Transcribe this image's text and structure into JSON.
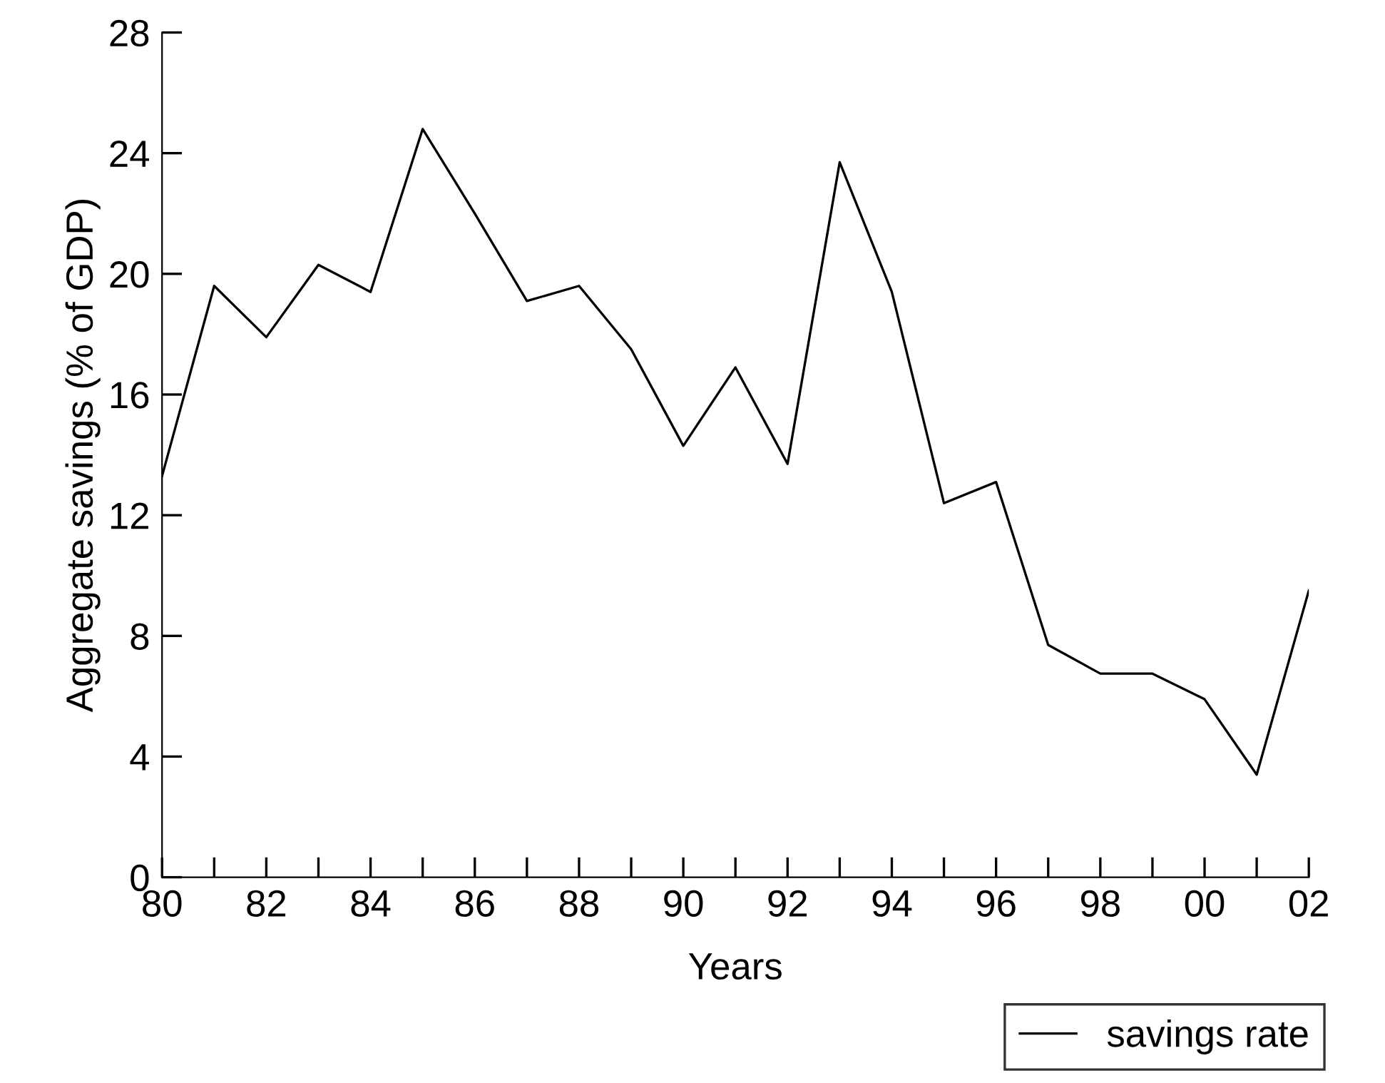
{
  "chart_data": {
    "type": "line",
    "xlabel": "Years",
    "ylabel": "Aggregate savings (% of GDP)",
    "x": [
      1980,
      1981,
      1982,
      1983,
      1984,
      1985,
      1986,
      1987,
      1988,
      1989,
      1990,
      1991,
      1992,
      1993,
      1994,
      1995,
      1996,
      1997,
      1998,
      1999,
      2000,
      2001,
      2002
    ],
    "series": [
      {
        "name": "savings rate",
        "color": "#000000",
        "values": [
          13.3,
          19.6,
          17.9,
          20.3,
          19.4,
          24.8,
          22.0,
          19.1,
          19.6,
          17.5,
          14.3,
          16.9,
          13.7,
          23.7,
          19.4,
          12.4,
          13.1,
          7.7,
          6.75,
          6.75,
          5.9,
          3.4,
          9.5
        ]
      }
    ],
    "xlim": [
      1980,
      2002
    ],
    "xticks": [
      {
        "value": 1980,
        "label": "80"
      },
      {
        "value": 1981,
        "label": null
      },
      {
        "value": 1982,
        "label": "82"
      },
      {
        "value": 1983,
        "label": null
      },
      {
        "value": 1984,
        "label": "84"
      },
      {
        "value": 1985,
        "label": null
      },
      {
        "value": 1986,
        "label": "86"
      },
      {
        "value": 1987,
        "label": null
      },
      {
        "value": 1988,
        "label": "88"
      },
      {
        "value": 1989,
        "label": null
      },
      {
        "value": 1990,
        "label": "90"
      },
      {
        "value": 1991,
        "label": null
      },
      {
        "value": 1992,
        "label": "92"
      },
      {
        "value": 1993,
        "label": null
      },
      {
        "value": 1994,
        "label": "94"
      },
      {
        "value": 1995,
        "label": null
      },
      {
        "value": 1996,
        "label": "96"
      },
      {
        "value": 1997,
        "label": null
      },
      {
        "value": 1998,
        "label": "98"
      },
      {
        "value": 1999,
        "label": null
      },
      {
        "value": 2000,
        "label": "00"
      },
      {
        "value": 2001,
        "label": null
      },
      {
        "value": 2002,
        "label": "02"
      }
    ],
    "ylim": [
      0,
      28
    ],
    "yticks": [
      0,
      4,
      8,
      12,
      16,
      20,
      24,
      28
    ],
    "grid": false,
    "legend": "bottom right",
    "marker": "none",
    "line_style": "solid"
  }
}
